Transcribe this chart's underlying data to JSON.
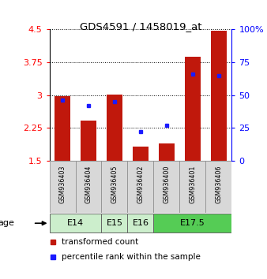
{
  "title": "GDS4591 / 1458019_at",
  "samples": [
    "GSM936403",
    "GSM936404",
    "GSM936405",
    "GSM936402",
    "GSM936400",
    "GSM936401",
    "GSM936406"
  ],
  "transformed_count": [
    2.97,
    2.42,
    3.02,
    1.82,
    1.89,
    3.87,
    4.47
  ],
  "percentile_rank": [
    46,
    42,
    45,
    22,
    27,
    66,
    65
  ],
  "ylim_left": [
    1.5,
    4.5
  ],
  "ylim_right": [
    0,
    100
  ],
  "yticks_left": [
    1.5,
    2.25,
    3.0,
    3.75,
    4.5
  ],
  "yticks_right": [
    0,
    25,
    50,
    75,
    100
  ],
  "ytick_labels_left": [
    "1.5",
    "2.25",
    "3",
    "3.75",
    "4.5"
  ],
  "ytick_labels_right": [
    "0",
    "25",
    "50",
    "75",
    "100%"
  ],
  "bar_color": "#c0180c",
  "dot_color": "#1a1aff",
  "bar_bottom": 1.5,
  "age_groups": [
    {
      "label": "E14",
      "samples": [
        0,
        1
      ],
      "color": "#cceecc"
    },
    {
      "label": "E15",
      "samples": [
        2
      ],
      "color": "#cceecc"
    },
    {
      "label": "E16",
      "samples": [
        3
      ],
      "color": "#cceecc"
    },
    {
      "label": "E17.5",
      "samples": [
        4,
        5,
        6
      ],
      "color": "#55cc55"
    }
  ],
  "bg_color": "#d8d8d8",
  "plot_bg": "#ffffff",
  "legend_items": [
    {
      "label": "transformed count",
      "color": "#c0180c"
    },
    {
      "label": "percentile rank within the sample",
      "color": "#1a1aff"
    }
  ]
}
